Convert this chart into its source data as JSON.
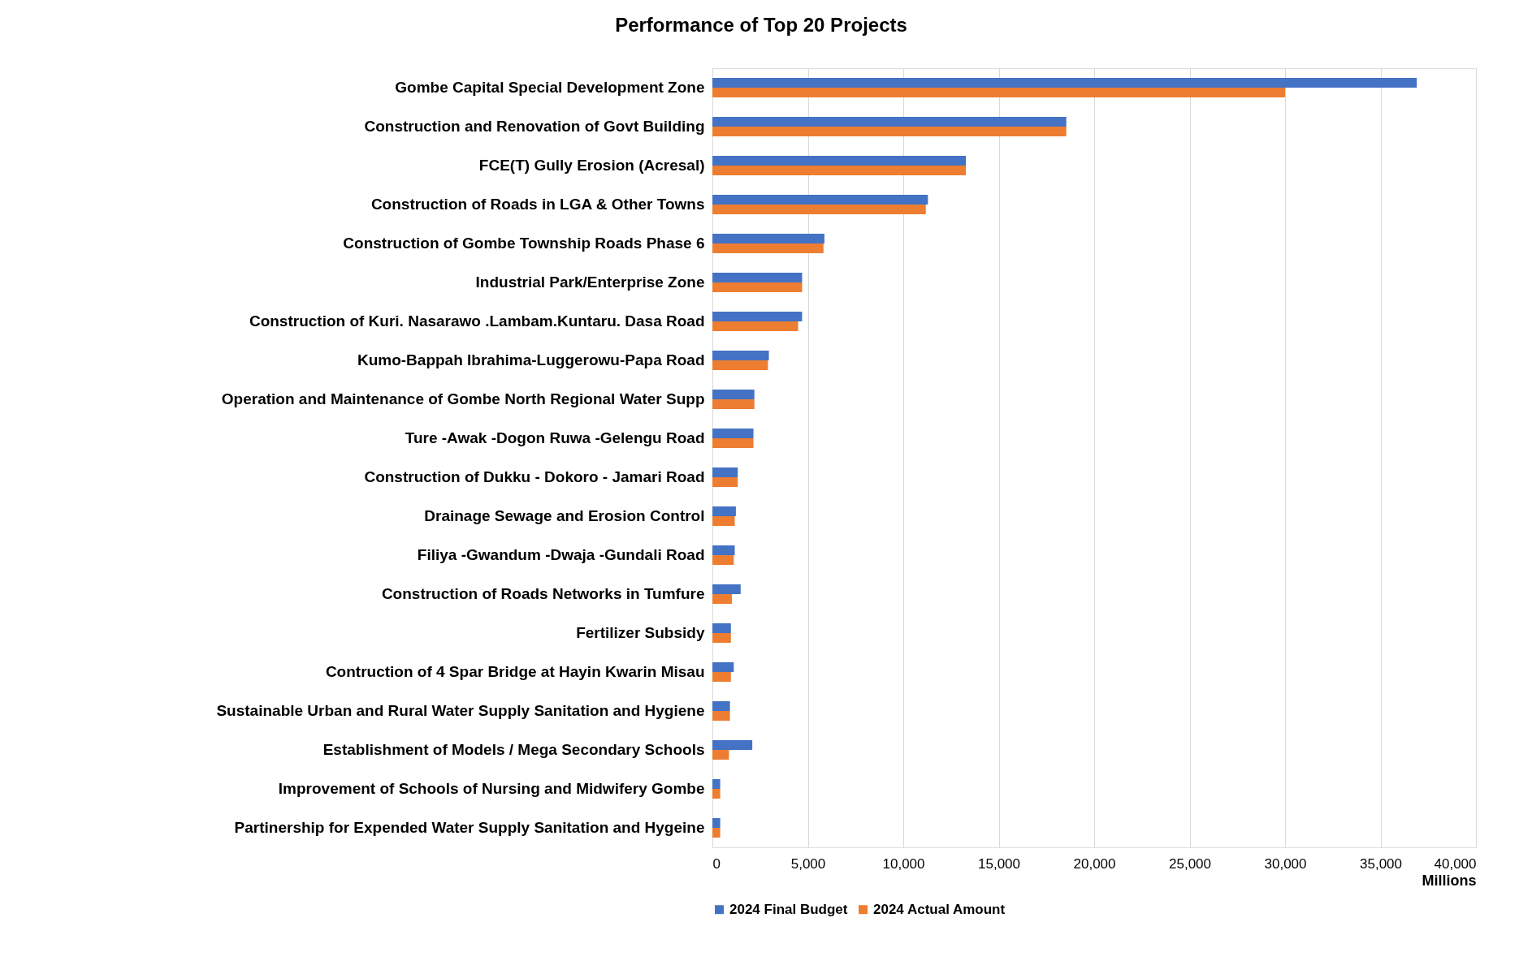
{
  "chart_data": {
    "type": "bar",
    "orientation": "horizontal",
    "title": "Performance of Top 20 Projects",
    "xlabel": "Millions",
    "categories": [
      "Gombe Capital Special Development Zone",
      "Construction and Renovation of Govt Building",
      "FCE(T) Gully Erosion (Acresal)",
      "Construction of Roads in LGA & Other Towns",
      "Construction of Gombe Township Roads Phase 6",
      "Industrial Park/Enterprise Zone",
      "Construction of Kuri. Nasarawo .Lambam.Kuntaru. Dasa Road",
      "Kumo-Bappah Ibrahima-Luggerowu-Papa Road",
      "Operation and Maintenance of Gombe North Regional Water Supp",
      "Ture -Awak -Dogon Ruwa -Gelengu Road",
      "Construction of Dukku - Dokoro - Jamari Road",
      "Drainage Sewage and Erosion Control",
      "Filiya -Gwandum -Dwaja -Gundali Road",
      "Construction of Roads Networks in Tumfure",
      "Fertilizer Subsidy",
      "Contruction of 4 Spar Bridge at Hayin Kwarin Misau",
      "Sustainable Urban and Rural Water Supply  Sanitation and Hygiene",
      "Establishment of Models / Mega Secondary Schools",
      "Improvement of Schools of Nursing and Midwifery Gombe",
      "Partinership for Expended Water Supply Sanitation and Hygeine"
    ],
    "series": [
      {
        "name": "2024 Final Budget",
        "color": "#4472c4",
        "values": [
          36900,
          18540,
          13280,
          11290,
          5870,
          4700,
          4700,
          2960,
          2200,
          2150,
          1330,
          1230,
          1170,
          1480,
          970,
          1120,
          920,
          2090,
          410,
          410
        ]
      },
      {
        "name": "2024 Actual Amount",
        "color": "#ed7d31",
        "values": [
          30000,
          18540,
          13280,
          11180,
          5820,
          4700,
          4490,
          2910,
          2200,
          2150,
          1330,
          1170,
          1120,
          1020,
          970,
          970,
          920,
          870,
          410,
          410
        ]
      }
    ],
    "xlim": [
      0,
      40000
    ],
    "xticks": [
      0,
      {
        "value": 5000,
        "label": "5,000"
      },
      {
        "value": 10000,
        "label": "10,000"
      },
      {
        "value": 15000,
        "label": "15,000"
      },
      {
        "value": 20000,
        "label": "20,000"
      },
      {
        "value": 25000,
        "label": "25,000"
      },
      {
        "value": 30000,
        "label": "30,000"
      },
      {
        "value": 35000,
        "label": "35,000"
      },
      {
        "value": 40000,
        "label": "40,000"
      }
    ],
    "grid": "x",
    "legend": "bottom"
  }
}
